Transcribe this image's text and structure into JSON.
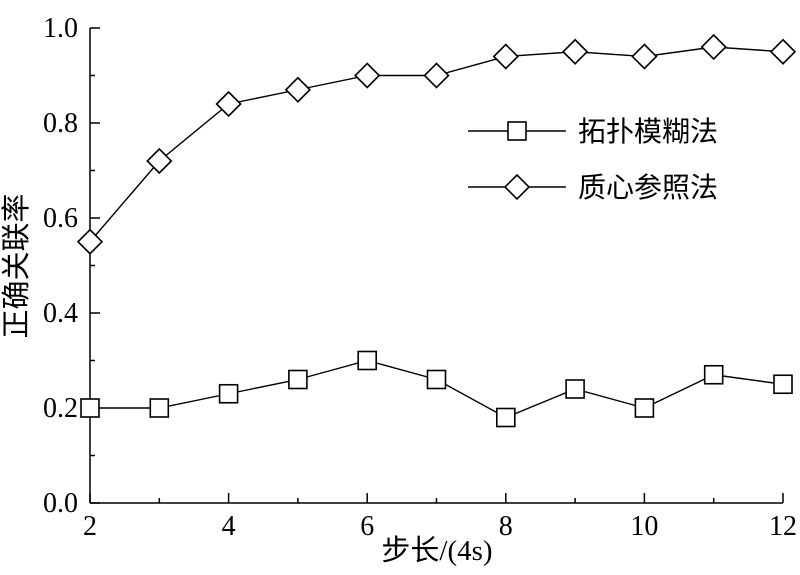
{
  "chart_data": {
    "type": "line",
    "title": "",
    "xlabel": "步长/(4s)",
    "ylabel": "正确关联率",
    "xlim": [
      2,
      12
    ],
    "ylim": [
      0.0,
      1.0
    ],
    "x_ticks": [
      2,
      4,
      6,
      8,
      10,
      12
    ],
    "y_ticks": [
      "0.0",
      "0.2",
      "0.4",
      "0.6",
      "0.8",
      "1.0"
    ],
    "grid": false,
    "legend_position": "middle-right",
    "line_color": "#000000",
    "background_color": "#ffffff",
    "x": [
      2,
      3,
      4,
      5,
      6,
      7,
      8,
      9,
      10,
      11,
      12
    ],
    "series": [
      {
        "name": "拓扑模糊法",
        "marker": "square",
        "values": [
          0.2,
          0.2,
          0.23,
          0.26,
          0.3,
          0.26,
          0.18,
          0.24,
          0.2,
          0.27,
          0.25
        ]
      },
      {
        "name": "质心参照法",
        "marker": "diamond",
        "values": [
          0.55,
          0.72,
          0.84,
          0.87,
          0.9,
          0.9,
          0.94,
          0.95,
          0.94,
          0.96,
          0.95
        ]
      }
    ]
  }
}
